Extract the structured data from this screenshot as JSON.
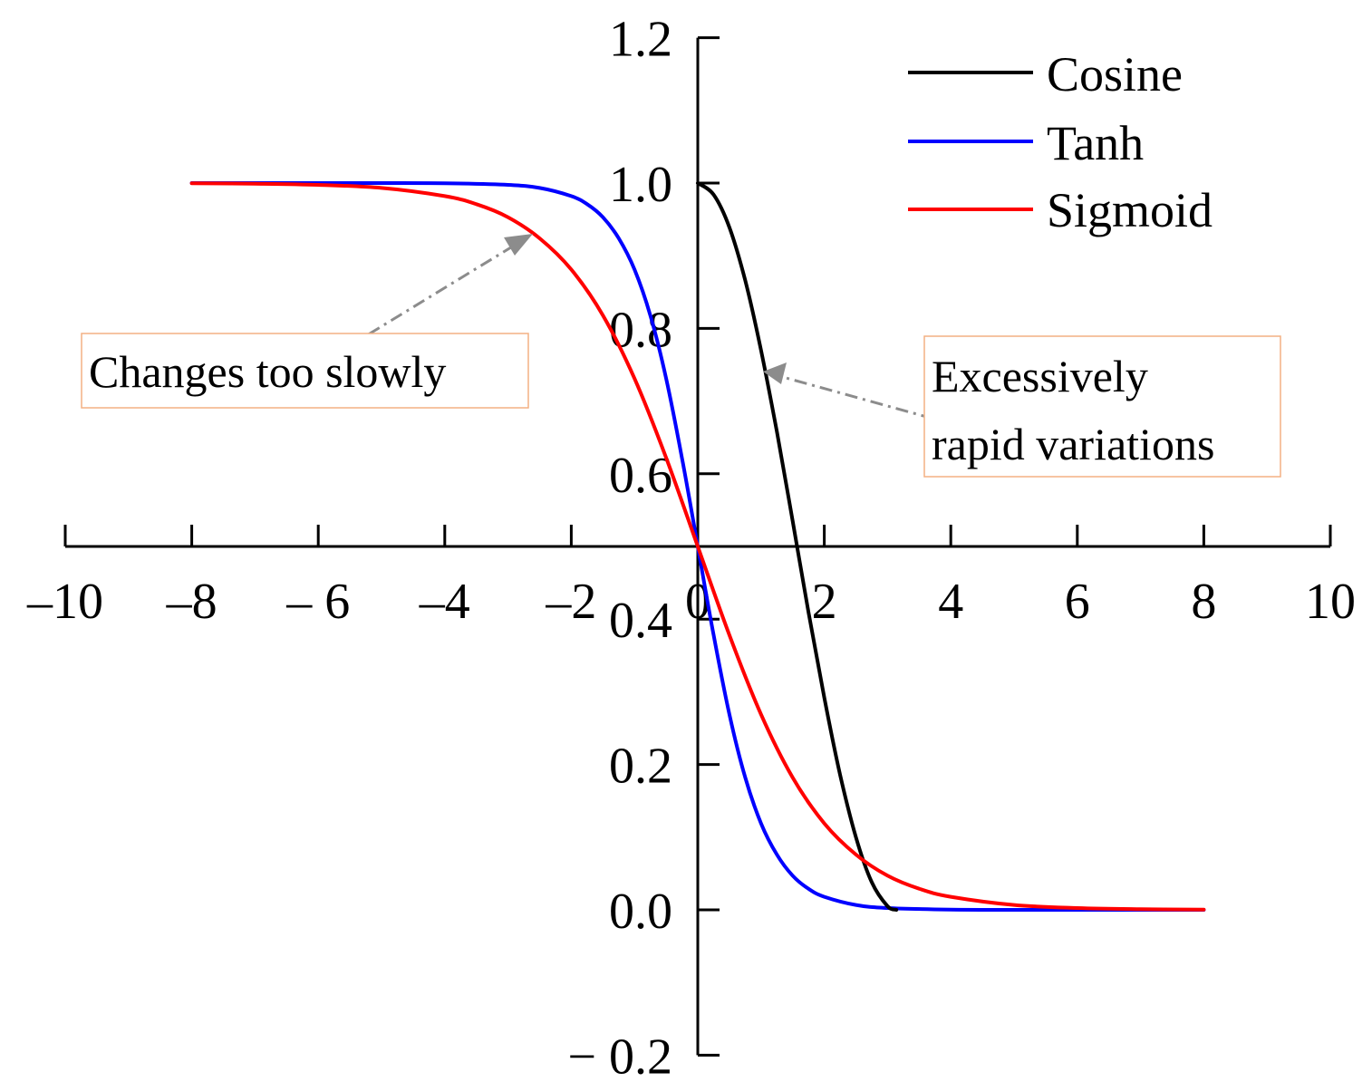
{
  "chart_data": {
    "type": "line",
    "title": "",
    "xlabel": "",
    "ylabel": "",
    "xlim": [
      -10,
      10
    ],
    "ylim": [
      -0.2,
      1.2
    ],
    "x_ticks": [
      -10,
      -8,
      -6,
      -4,
      -2,
      0,
      2,
      4,
      6,
      8,
      10
    ],
    "x_tick_labels": [
      "–10",
      "–8",
      "– 6",
      "–4",
      "–2",
      "0",
      "2",
      "4",
      "6",
      "8",
      "10"
    ],
    "y_ticks": [
      1.2,
      1.0,
      0.8,
      0.6,
      0.4,
      0.2,
      0.0,
      -0.2
    ],
    "y_tick_labels": [
      "1.2",
      "1.0",
      "0.8",
      "0.6",
      "0.4",
      "0.2",
      "0.0",
      "− 0.2"
    ],
    "x_axis_crosses_y_at": 0.5,
    "y_axis_crosses_x_at": 0,
    "grid": false,
    "legend_position": "top-right",
    "series": [
      {
        "name": "Cosine",
        "color": "#000000",
        "x": [
          0,
          0.25,
          0.5,
          0.75,
          1.0,
          1.25,
          1.5,
          1.75,
          2.0,
          2.25,
          2.5,
          2.75,
          3.0,
          3.14
        ],
        "y": [
          1.0,
          0.984,
          0.939,
          0.866,
          0.77,
          0.658,
          0.535,
          0.41,
          0.292,
          0.186,
          0.1,
          0.038,
          0.005,
          0.0
        ]
      },
      {
        "name": "Tanh",
        "color": "#0000ff",
        "x": [
          -8,
          -7,
          -6,
          -5,
          -4,
          -3,
          -2.5,
          -2,
          -1.75,
          -1.5,
          -1.25,
          -1,
          -0.75,
          -0.5,
          -0.25,
          0,
          0.25,
          0.5,
          0.75,
          1,
          1.25,
          1.5,
          1.75,
          2,
          2.5,
          3,
          4,
          5,
          6,
          7,
          8
        ],
        "y": [
          1.0,
          1.0,
          1.0,
          1.0,
          0.9997,
          0.9975,
          0.9933,
          0.982,
          0.971,
          0.953,
          0.924,
          0.881,
          0.818,
          0.731,
          0.622,
          0.5,
          0.378,
          0.269,
          0.182,
          0.119,
          0.076,
          0.047,
          0.029,
          0.018,
          0.0067,
          0.0025,
          0.0003,
          0.0,
          0.0,
          0.0,
          0.0
        ]
      },
      {
        "name": "Sigmoid",
        "color": "#ff0000",
        "x": [
          -8,
          -7,
          -6,
          -5,
          -4,
          -3.5,
          -3,
          -2.5,
          -2,
          -1.5,
          -1,
          -0.5,
          0,
          0.5,
          1,
          1.5,
          2,
          2.5,
          3,
          3.5,
          4,
          5,
          6,
          7,
          8
        ],
        "y": [
          0.9997,
          0.9991,
          0.9975,
          0.9933,
          0.982,
          0.971,
          0.953,
          0.924,
          0.881,
          0.818,
          0.731,
          0.622,
          0.5,
          0.378,
          0.269,
          0.182,
          0.119,
          0.076,
          0.047,
          0.029,
          0.018,
          0.0067,
          0.0025,
          0.0009,
          0.0003
        ]
      }
    ],
    "annotations": [
      {
        "text": "Changes too slowly",
        "points_to": {
          "x": -2.6,
          "y": 0.93
        }
      },
      {
        "lines": [
          "Excessively",
          "rapid variations"
        ],
        "points_to": {
          "x": 1.0,
          "y": 0.74
        }
      }
    ]
  }
}
